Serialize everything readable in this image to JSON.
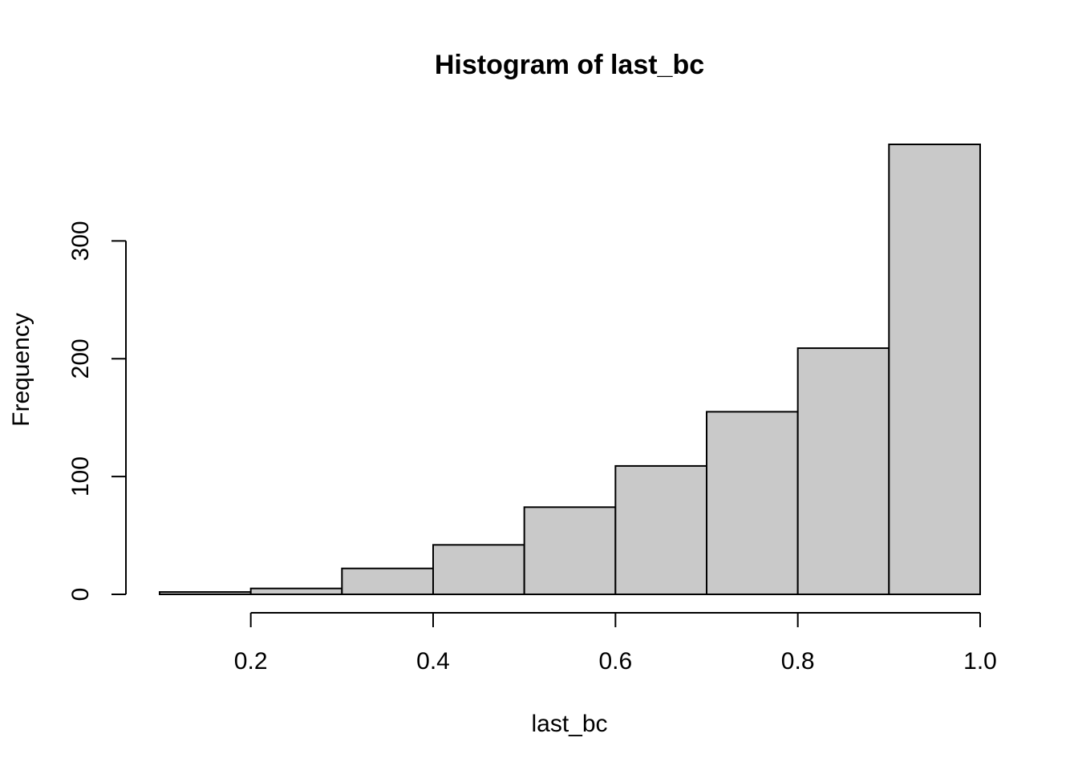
{
  "chart_data": {
    "type": "bar",
    "subtype": "histogram",
    "title": "Histogram of last_bc",
    "xlabel": "last_bc",
    "ylabel": "Frequency",
    "bins": [
      {
        "x0": 0.1,
        "x1": 0.2,
        "count": 2
      },
      {
        "x0": 0.2,
        "x1": 0.3,
        "count": 5
      },
      {
        "x0": 0.3,
        "x1": 0.4,
        "count": 22
      },
      {
        "x0": 0.4,
        "x1": 0.5,
        "count": 42
      },
      {
        "x0": 0.5,
        "x1": 0.6,
        "count": 74
      },
      {
        "x0": 0.6,
        "x1": 0.7,
        "count": 109
      },
      {
        "x0": 0.7,
        "x1": 0.8,
        "count": 155
      },
      {
        "x0": 0.8,
        "x1": 0.9,
        "count": 209
      },
      {
        "x0": 0.9,
        "x1": 1.0,
        "count": 382
      }
    ],
    "xlim": [
      0.1,
      1.0
    ],
    "ylim": [
      0,
      382
    ],
    "x_ticks": [
      {
        "value": 0.2,
        "label": "0.2"
      },
      {
        "value": 0.4,
        "label": "0.4"
      },
      {
        "value": 0.6,
        "label": "0.6"
      },
      {
        "value": 0.8,
        "label": "0.8"
      },
      {
        "value": 1.0,
        "label": "1.0"
      }
    ],
    "y_ticks": [
      {
        "value": 0,
        "label": "0"
      },
      {
        "value": 100,
        "label": "100"
      },
      {
        "value": 200,
        "label": "200"
      },
      {
        "value": 300,
        "label": "300"
      }
    ],
    "grid": false,
    "bar_color": "#c9c9c9",
    "edge_color": "#000000"
  }
}
